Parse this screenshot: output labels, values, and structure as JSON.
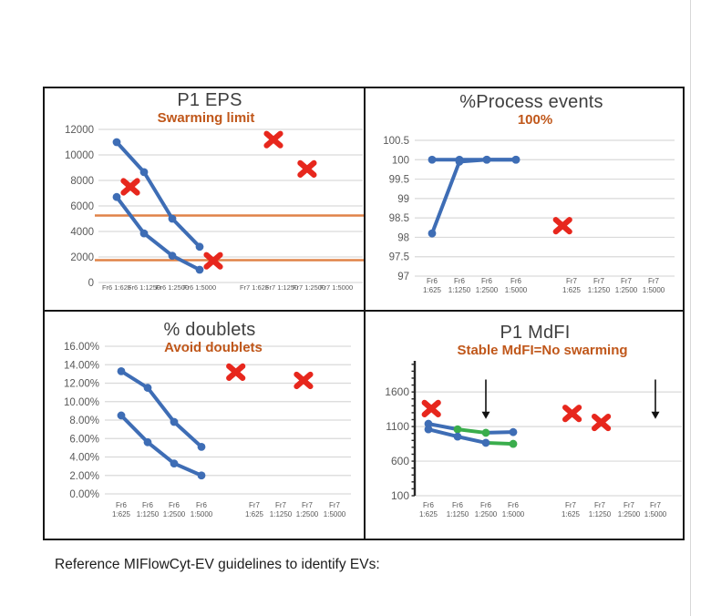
{
  "page": {
    "caption": "Reference MIFlowCyt-EV guidelines to identify EVs:"
  },
  "colors": {
    "series_blue": "#3e6db5",
    "series_green": "#3aad4c",
    "marker_red": "#e7271d",
    "ref_orange": "#e08348",
    "subtitle_orange": "#c0571a",
    "title_gray": "#3f3f3f",
    "axis_gray": "#595959",
    "grid_gray": "#d9d9d9",
    "border_black": "#161616",
    "arrow_black": "#111111"
  },
  "chart_data": [
    {
      "id": "p1_eps",
      "type": "line",
      "title": "P1 EPS",
      "subtitle": "Swarming limit",
      "categories": [
        [
          "Fr6",
          "1:625"
        ],
        [
          "Fr6",
          "1:1250"
        ],
        [
          "Fr6",
          "1:2500"
        ],
        [
          "Fr6",
          "1:5000"
        ],
        [
          "Fr7",
          "1:625"
        ],
        [
          "Fr7",
          "1:1250"
        ],
        [
          "Fr7",
          "1:2500"
        ],
        [
          "Fr7",
          "1:5000"
        ]
      ],
      "x_label_mode": "inline",
      "ylim": [
        0,
        12000
      ],
      "grid": true,
      "legend": "none",
      "y_ticks": [
        {
          "v": 0,
          "label": "0"
        },
        {
          "v": 2000,
          "label": "2000"
        },
        {
          "v": 4000,
          "label": "4000"
        },
        {
          "v": 6000,
          "label": "6000"
        },
        {
          "v": 8000,
          "label": "8000"
        },
        {
          "v": 10000,
          "label": "10000"
        },
        {
          "v": 12000,
          "label": "12000"
        }
      ],
      "series": [
        {
          "name": "Fr6",
          "values": [
            6700,
            3850,
            2100,
            1000
          ]
        },
        {
          "name": "Fr7",
          "values": [
            11000,
            8650,
            5000,
            2800
          ]
        }
      ],
      "ref_lines": [
        {
          "value": 5250
        },
        {
          "value": 1750
        }
      ],
      "x_markers": [
        {
          "xi": 0.5,
          "value": 7500
        },
        {
          "xi": 3.25,
          "value": 1700
        },
        {
          "xi": 4.7,
          "value": 11200
        },
        {
          "xi": 5.93,
          "value": 8900
        }
      ]
    },
    {
      "id": "process_events",
      "type": "line",
      "title": "%Process events",
      "subtitle": "100%",
      "categories": [
        [
          "Fr6",
          "1:625"
        ],
        [
          "Fr6",
          "1:1250"
        ],
        [
          "Fr6",
          "1:2500"
        ],
        [
          "Fr6",
          "1:5000"
        ],
        [
          "Fr7",
          "1:625"
        ],
        [
          "Fr7",
          "1:1250"
        ],
        [
          "Fr7",
          "1:2500"
        ],
        [
          "Fr7",
          "1:5000"
        ]
      ],
      "x_label_mode": "stacked",
      "ylim": [
        97,
        100.5
      ],
      "grid": true,
      "legend": "none",
      "y_ticks": [
        {
          "v": 97,
          "label": "97"
        },
        {
          "v": 97.5,
          "label": "97.5"
        },
        {
          "v": 98,
          "label": "98"
        },
        {
          "v": 98.5,
          "label": "98.5"
        },
        {
          "v": 99,
          "label": "99"
        },
        {
          "v": 99.5,
          "label": "99.5"
        },
        {
          "v": 100,
          "label": "100"
        },
        {
          "v": 100.5,
          "label": "100.5"
        }
      ],
      "series": [
        {
          "name": "Fr6",
          "values": [
            100,
            100,
            100,
            100
          ]
        },
        {
          "name": "Fr7",
          "values": [
            98.1,
            99.95,
            100,
            100
          ]
        }
      ],
      "x_markers": [
        {
          "xi": 3.84,
          "value": 98.3
        }
      ]
    },
    {
      "id": "doublets",
      "type": "line",
      "title": "% doublets",
      "subtitle": "Avoid doublets",
      "categories": [
        [
          "Fr6",
          "1:625"
        ],
        [
          "Fr6",
          "1:1250"
        ],
        [
          "Fr6",
          "1:2500"
        ],
        [
          "Fr6",
          "1:5000"
        ],
        [
          "Fr7",
          "1:625"
        ],
        [
          "Fr7",
          "1:1250"
        ],
        [
          "Fr7",
          "1:2500"
        ],
        [
          "Fr7",
          "1:5000"
        ]
      ],
      "x_label_mode": "stacked",
      "ylim": [
        0,
        16
      ],
      "grid": true,
      "legend": "none",
      "y_ticks": [
        {
          "v": 0,
          "label": "0.00%"
        },
        {
          "v": 2,
          "label": "2.00%"
        },
        {
          "v": 4,
          "label": "4.00%"
        },
        {
          "v": 6,
          "label": "6.00%"
        },
        {
          "v": 8,
          "label": "8.00%"
        },
        {
          "v": 10,
          "label": "10.00%"
        },
        {
          "v": 12,
          "label": "12.00%"
        },
        {
          "v": 14,
          "label": "14.00%"
        },
        {
          "v": 16,
          "label": "16.00%"
        }
      ],
      "series": [
        {
          "name": "Fr6",
          "values": [
            8.5,
            5.6,
            3.3,
            2.0
          ]
        },
        {
          "name": "Fr7",
          "values": [
            13.3,
            11.5,
            7.8,
            5.1
          ]
        }
      ],
      "x_markers": [
        {
          "xi": 3.65,
          "value": 13.2
        },
        {
          "xi": 5.86,
          "value": 12.3
        }
      ]
    },
    {
      "id": "p1_mdfi",
      "type": "line",
      "title": "P1 MdFI",
      "subtitle": "Stable MdFI=No swarming",
      "categories": [
        [
          "Fr6",
          "1:625"
        ],
        [
          "Fr6",
          "1:1250"
        ],
        [
          "Fr6",
          "1:2500"
        ],
        [
          "Fr6",
          "1:5000"
        ],
        [
          "Fr7",
          "1:625"
        ],
        [
          "Fr7",
          "1:1250"
        ],
        [
          "Fr7",
          "1:2500"
        ],
        [
          "Fr7",
          "1:5000"
        ]
      ],
      "x_label_mode": "stacked",
      "ylim": [
        100,
        2050
      ],
      "grid": true,
      "legend": "none",
      "y_axis_line": true,
      "minor_tick_step": 100,
      "grid_values": [
        100,
        600,
        1100,
        1600
      ],
      "y_ticks": [
        {
          "v": 100,
          "label": "100"
        },
        {
          "v": 600,
          "label": "600"
        },
        {
          "v": 1100,
          "label": "1100"
        },
        {
          "v": 1600,
          "label": "1600"
        }
      ],
      "series": [
        {
          "name": "Fr6",
          "values": [
            1140,
            1060,
            1010,
            1020
          ],
          "green_segments": [
            [
              1,
              2
            ]
          ],
          "green_points": [
            1,
            2
          ]
        },
        {
          "name": "Fr7",
          "values": [
            1060,
            955,
            865,
            850
          ],
          "green_segments": [
            [
              2,
              3
            ]
          ],
          "green_points": [
            3
          ]
        }
      ],
      "x_markers": [
        {
          "xi": 0.1,
          "value": 1360
        },
        {
          "xi": 4.05,
          "value": 1290
        },
        {
          "xi": 5.05,
          "value": 1160
        }
      ],
      "arrows": [
        {
          "xi": 2,
          "from": 1780,
          "to": 1210
        },
        {
          "xi": 7,
          "from": 1780,
          "to": 1210
        }
      ]
    }
  ]
}
